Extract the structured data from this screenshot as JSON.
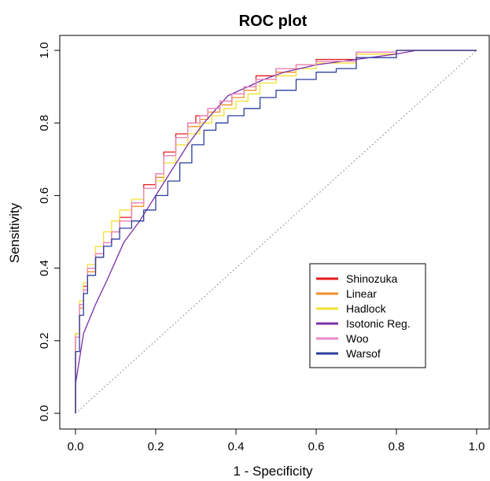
{
  "chart_data": {
    "type": "line",
    "title": "ROC plot",
    "xlabel": "1 - Specificity",
    "ylabel": "Sensitivity",
    "xlim": [
      0.0,
      1.0
    ],
    "ylim": [
      0.0,
      1.0
    ],
    "xticks": [
      "0.0",
      "0.2",
      "0.4",
      "0.6",
      "0.8",
      "1.0"
    ],
    "yticks": [
      "0.0",
      "0.2",
      "0.4",
      "0.6",
      "0.8",
      "1.0"
    ],
    "grid": false,
    "legend_position": "right",
    "reference_line": {
      "style": "dotted",
      "color": "#777777",
      "x": [
        0,
        1
      ],
      "y": [
        0,
        1
      ]
    },
    "series": [
      {
        "name": "Shinozuka",
        "color": "#e41a1c",
        "x": [
          0.0,
          0.0,
          0.01,
          0.02,
          0.03,
          0.05,
          0.07,
          0.09,
          0.11,
          0.14,
          0.17,
          0.2,
          0.22,
          0.25,
          0.28,
          0.3,
          0.33,
          0.36,
          0.39,
          0.42,
          0.45,
          0.5,
          0.55,
          0.6,
          0.7,
          0.8,
          0.85,
          1.0
        ],
        "y": [
          0.0,
          0.17,
          0.22,
          0.3,
          0.35,
          0.4,
          0.44,
          0.47,
          0.5,
          0.54,
          0.58,
          0.63,
          0.66,
          0.72,
          0.77,
          0.8,
          0.82,
          0.84,
          0.86,
          0.88,
          0.9,
          0.93,
          0.95,
          0.96,
          0.975,
          0.995,
          1.0,
          1.0
        ]
      },
      {
        "name": "Linear",
        "color": "#f28e2b",
        "x": [
          0.0,
          0.0,
          0.01,
          0.02,
          0.03,
          0.05,
          0.07,
          0.09,
          0.11,
          0.14,
          0.17,
          0.2,
          0.22,
          0.25,
          0.28,
          0.31,
          0.33,
          0.36,
          0.39,
          0.42,
          0.45,
          0.5,
          0.55,
          0.6,
          0.7,
          0.8,
          0.85,
          1.0
        ],
        "y": [
          0.0,
          0.16,
          0.21,
          0.29,
          0.34,
          0.39,
          0.43,
          0.47,
          0.5,
          0.53,
          0.57,
          0.62,
          0.65,
          0.71,
          0.76,
          0.79,
          0.81,
          0.83,
          0.85,
          0.87,
          0.89,
          0.92,
          0.94,
          0.96,
          0.97,
          0.99,
          1.0,
          1.0
        ]
      },
      {
        "name": "Hadlock",
        "color": "#f2e033",
        "x": [
          0.0,
          0.0,
          0.01,
          0.02,
          0.03,
          0.05,
          0.07,
          0.09,
          0.11,
          0.14,
          0.17,
          0.2,
          0.22,
          0.25,
          0.28,
          0.31,
          0.34,
          0.37,
          0.4,
          0.43,
          0.46,
          0.5,
          0.55,
          0.6,
          0.7,
          0.8,
          0.86,
          1.0
        ],
        "y": [
          0.0,
          0.15,
          0.22,
          0.31,
          0.36,
          0.41,
          0.46,
          0.5,
          0.53,
          0.56,
          0.59,
          0.62,
          0.64,
          0.69,
          0.74,
          0.77,
          0.8,
          0.82,
          0.84,
          0.86,
          0.88,
          0.91,
          0.93,
          0.95,
          0.965,
          0.99,
          1.0,
          1.0
        ]
      },
      {
        "name": "Isotonic Reg.",
        "color": "#7b2fa8",
        "x": [
          0.0,
          0.0,
          0.01,
          0.02,
          0.05,
          0.08,
          0.12,
          0.16,
          0.2,
          0.24,
          0.28,
          0.32,
          0.36,
          0.38,
          0.42,
          0.47,
          0.52,
          0.6,
          0.7,
          0.8,
          0.85,
          1.0
        ],
        "y": [
          0.0,
          0.08,
          0.15,
          0.22,
          0.3,
          0.37,
          0.47,
          0.53,
          0.6,
          0.67,
          0.74,
          0.8,
          0.85,
          0.875,
          0.895,
          0.92,
          0.94,
          0.96,
          0.975,
          0.99,
          1.0,
          1.0
        ]
      },
      {
        "name": "Woo",
        "color": "#e78ac3",
        "x": [
          0.0,
          0.0,
          0.01,
          0.02,
          0.03,
          0.05,
          0.07,
          0.09,
          0.11,
          0.14,
          0.17,
          0.2,
          0.22,
          0.25,
          0.28,
          0.31,
          0.33,
          0.36,
          0.39,
          0.42,
          0.45,
          0.5,
          0.55,
          0.6,
          0.7,
          0.8,
          0.85,
          1.0
        ],
        "y": [
          0.0,
          0.16,
          0.21,
          0.3,
          0.34,
          0.4,
          0.44,
          0.47,
          0.5,
          0.53,
          0.58,
          0.62,
          0.66,
          0.71,
          0.76,
          0.8,
          0.82,
          0.84,
          0.86,
          0.88,
          0.9,
          0.92,
          0.95,
          0.96,
          0.97,
          0.995,
          1.0,
          1.0
        ]
      },
      {
        "name": "Warsof",
        "color": "#2c3e9e",
        "x": [
          0.0,
          0.0,
          0.01,
          0.02,
          0.03,
          0.05,
          0.07,
          0.09,
          0.11,
          0.14,
          0.17,
          0.2,
          0.23,
          0.26,
          0.29,
          0.32,
          0.35,
          0.38,
          0.42,
          0.46,
          0.5,
          0.55,
          0.6,
          0.65,
          0.7,
          0.8,
          0.85,
          1.0
        ],
        "y": [
          0.0,
          0.13,
          0.17,
          0.27,
          0.33,
          0.38,
          0.43,
          0.46,
          0.48,
          0.51,
          0.53,
          0.56,
          0.6,
          0.64,
          0.69,
          0.74,
          0.78,
          0.8,
          0.82,
          0.84,
          0.87,
          0.89,
          0.92,
          0.94,
          0.95,
          0.98,
          1.0,
          1.0
        ]
      }
    ]
  }
}
